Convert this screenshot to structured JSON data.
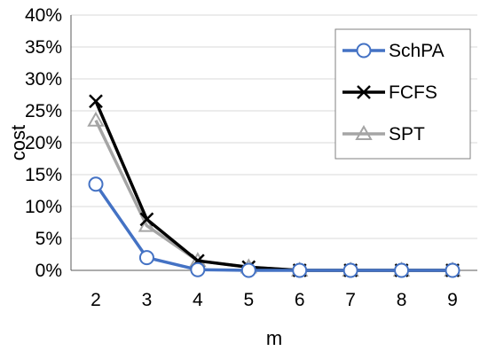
{
  "chart_data": {
    "type": "line",
    "xlabel": "m",
    "ylabel": "cost",
    "x": [
      2,
      3,
      4,
      5,
      6,
      7,
      8,
      9
    ],
    "x_ticks": [
      "2",
      "3",
      "4",
      "5",
      "6",
      "7",
      "8",
      "9"
    ],
    "ylim": [
      0,
      40
    ],
    "y_ticks": [
      0,
      5,
      10,
      15,
      20,
      25,
      30,
      35,
      40
    ],
    "y_tick_labels": [
      "0%",
      "5%",
      "10%",
      "15%",
      "20%",
      "25%",
      "30%",
      "35%",
      "40%"
    ],
    "grid": "horizontal",
    "legend_position": "top-right",
    "series": [
      {
        "name": "SchPA",
        "color": "#4472C4",
        "marker": "circle",
        "values": [
          13.5,
          2.0,
          0.1,
          0.0,
          0.0,
          0.0,
          0.0,
          0.0
        ]
      },
      {
        "name": "FCFS",
        "color": "#000000",
        "marker": "x",
        "values": [
          26.5,
          8.0,
          1.5,
          0.5,
          0.0,
          0.0,
          0.0,
          0.0
        ]
      },
      {
        "name": "SPT",
        "color": "#A5A5A5",
        "marker": "triangle",
        "values": [
          23.5,
          7.0,
          1.5,
          0.5,
          0.0,
          0.0,
          0.0,
          0.0
        ]
      }
    ]
  }
}
